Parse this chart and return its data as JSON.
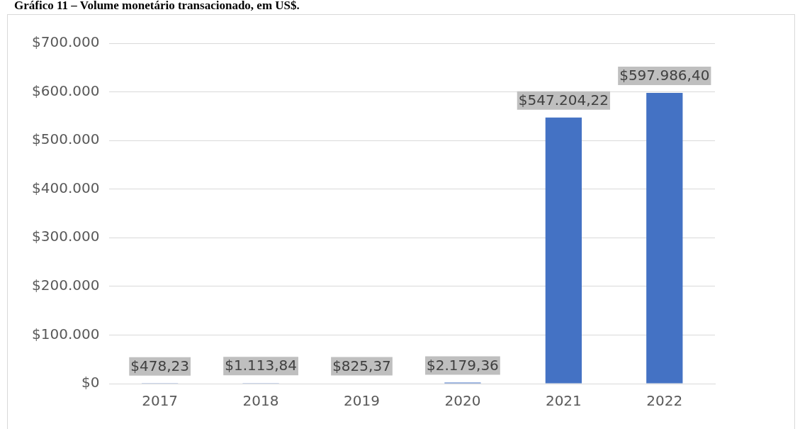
{
  "chart_data": {
    "type": "bar",
    "title": "Gráfico 11 – Volume monetário transacionado, em US$.",
    "categories": [
      "2017",
      "2018",
      "2019",
      "2020",
      "2021",
      "2022"
    ],
    "values": [
      478.23,
      1113.84,
      825.37,
      2179.36,
      547204.22,
      597986.4
    ],
    "value_labels": [
      "$478,23",
      "$1.113,84",
      "$825,37",
      "$2.179,36",
      "$547.204,22",
      "$597.986,40"
    ],
    "color": "#4472c4",
    "ylim": [
      0,
      700000
    ],
    "yticks": [
      {
        "value": 0,
        "label": "$0"
      },
      {
        "value": 100000,
        "label": "$100.000"
      },
      {
        "value": 200000,
        "label": "$200.000"
      },
      {
        "value": 300000,
        "label": "$300.000"
      },
      {
        "value": 400000,
        "label": "$400.000"
      },
      {
        "value": 500000,
        "label": "$500.000"
      },
      {
        "value": 600000,
        "label": "$600.000"
      },
      {
        "value": 700000,
        "label": "$700.000"
      }
    ],
    "grid": "y",
    "legend": false
  }
}
